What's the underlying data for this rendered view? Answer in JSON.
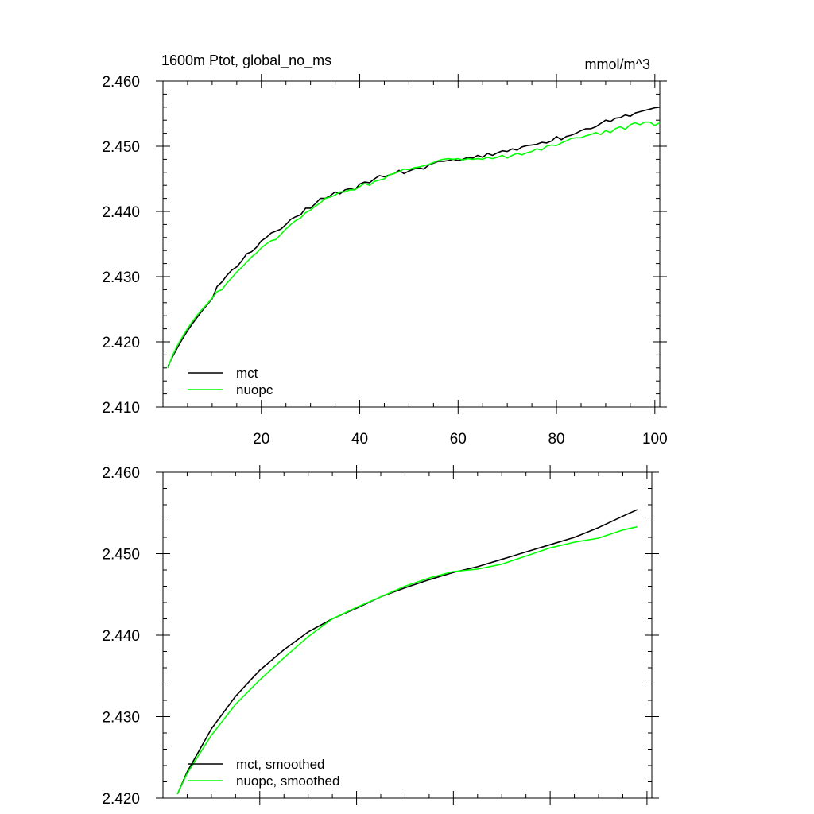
{
  "chart_data": [
    {
      "type": "line",
      "title": "1600m Ptot, global_no_ms",
      "units": "mmol/m^3",
      "xlabel": "",
      "ylabel": "",
      "xlim": [
        0,
        101
      ],
      "ylim": [
        2.41,
        2.46
      ],
      "xticks": [
        20,
        40,
        60,
        80,
        100
      ],
      "xtick_labels": [
        "20",
        "40",
        "60",
        "80",
        "100"
      ],
      "yticks": [
        2.41,
        2.42,
        2.43,
        2.44,
        2.45,
        2.46
      ],
      "ytick_labels": [
        "2.410",
        "2.420",
        "2.430",
        "2.440",
        "2.450",
        "2.460"
      ],
      "grid": false,
      "legend_position": "bottom-left",
      "series": [
        {
          "name": "mct",
          "color": "#000000",
          "x": [
            1,
            2,
            3,
            4,
            5,
            6,
            7,
            8,
            9,
            10,
            11,
            12,
            13,
            14,
            15,
            16,
            17,
            18,
            19,
            20,
            21,
            22,
            23,
            24,
            25,
            26,
            27,
            28,
            29,
            30,
            31,
            32,
            33,
            34,
            35,
            36,
            37,
            38,
            39,
            40,
            41,
            42,
            43,
            44,
            45,
            46,
            47,
            48,
            49,
            50,
            51,
            52,
            53,
            54,
            55,
            56,
            57,
            58,
            59,
            60,
            61,
            62,
            63,
            64,
            65,
            66,
            67,
            68,
            69,
            70,
            71,
            72,
            73,
            74,
            75,
            76,
            77,
            78,
            79,
            80,
            81,
            82,
            83,
            84,
            85,
            86,
            87,
            88,
            89,
            90,
            91,
            92,
            93,
            94,
            95,
            96,
            97,
            98,
            99,
            100,
            101
          ],
          "values": [
            2.4162,
            2.4178,
            2.4192,
            2.4205,
            2.4217,
            2.4228,
            2.4238,
            2.4248,
            2.4257,
            2.4266,
            2.4285,
            2.4292,
            2.4302,
            2.431,
            2.4315,
            2.4324,
            2.4335,
            2.4338,
            2.4345,
            2.4355,
            2.436,
            2.4367,
            2.437,
            2.4373,
            2.438,
            2.4388,
            2.4392,
            2.4395,
            2.4405,
            2.4405,
            2.4412,
            2.442,
            2.442,
            2.4424,
            2.443,
            2.4427,
            2.4433,
            2.4435,
            2.4433,
            2.4442,
            2.4445,
            2.4444,
            2.445,
            2.4455,
            2.4453,
            2.4456,
            2.4458,
            2.4463,
            2.4458,
            2.4462,
            2.4465,
            2.4467,
            2.4465,
            2.4471,
            2.4474,
            2.4477,
            2.4477,
            2.4478,
            2.448,
            2.4478,
            2.448,
            2.4483,
            2.4482,
            2.4486,
            2.4483,
            2.4489,
            2.4486,
            2.449,
            2.4493,
            2.4492,
            2.4496,
            2.4494,
            2.4499,
            2.4501,
            2.4502,
            2.4503,
            2.4506,
            2.4505,
            2.4508,
            2.4515,
            2.451,
            2.4515,
            2.4517,
            2.452,
            2.4524,
            2.4527,
            2.4527,
            2.453,
            2.4535,
            2.454,
            2.4538,
            2.4543,
            2.4544,
            2.4548,
            2.4546,
            2.4551,
            2.4553,
            2.4555,
            2.4557,
            2.4559,
            2.456
          ]
        },
        {
          "name": "nuopc",
          "color": "#00ff00",
          "x": [
            1,
            2,
            3,
            4,
            5,
            6,
            7,
            8,
            9,
            10,
            11,
            12,
            13,
            14,
            15,
            16,
            17,
            18,
            19,
            20,
            21,
            22,
            23,
            24,
            25,
            26,
            27,
            28,
            29,
            30,
            31,
            32,
            33,
            34,
            35,
            36,
            37,
            38,
            39,
            40,
            41,
            42,
            43,
            44,
            45,
            46,
            47,
            48,
            49,
            50,
            51,
            52,
            53,
            54,
            55,
            56,
            57,
            58,
            59,
            60,
            61,
            62,
            63,
            64,
            65,
            66,
            67,
            68,
            69,
            70,
            71,
            72,
            73,
            74,
            75,
            76,
            77,
            78,
            79,
            80,
            81,
            82,
            83,
            84,
            85,
            86,
            87,
            88,
            89,
            90,
            91,
            92,
            93,
            94,
            95,
            96,
            97,
            98,
            99,
            100,
            101
          ],
          "values": [
            2.416,
            2.418,
            2.4195,
            2.4208,
            2.422,
            2.4231,
            2.4241,
            2.425,
            2.4258,
            2.4267,
            2.4277,
            2.428,
            2.429,
            2.4298,
            2.4307,
            2.4314,
            2.4322,
            2.433,
            2.4336,
            2.4344,
            2.435,
            2.4355,
            2.4357,
            2.4365,
            2.4373,
            2.438,
            2.4386,
            2.439,
            2.4398,
            2.4402,
            2.4408,
            2.4413,
            2.442,
            2.4422,
            2.4425,
            2.443,
            2.443,
            2.4433,
            2.4433,
            2.4438,
            2.4443,
            2.444,
            2.4446,
            2.4448,
            2.445,
            2.4456,
            2.4458,
            2.4461,
            2.4465,
            2.4464,
            2.4467,
            2.4468,
            2.447,
            2.4472,
            2.4475,
            2.4478,
            2.448,
            2.4481,
            2.448,
            2.4481,
            2.4479,
            2.4481,
            2.448,
            2.4481,
            2.448,
            2.4483,
            2.4481,
            2.4483,
            2.4486,
            2.4482,
            2.4486,
            2.4489,
            2.4487,
            2.449,
            2.4492,
            2.4496,
            2.4494,
            2.45,
            2.4502,
            2.4501,
            2.4505,
            2.4508,
            2.4512,
            2.4513,
            2.4513,
            2.4516,
            2.4518,
            2.4521,
            2.4518,
            2.4524,
            2.4521,
            2.4527,
            2.453,
            2.4526,
            2.4533,
            2.4536,
            2.4533,
            2.4537,
            2.4537,
            2.4532,
            2.4536
          ]
        }
      ]
    },
    {
      "type": "line",
      "title": "",
      "xlabel": "",
      "ylabel": "",
      "xlim": [
        0,
        101
      ],
      "ylim": [
        2.42,
        2.46
      ],
      "xticks": [
        20,
        40,
        60,
        80,
        100
      ],
      "yticks": [
        2.42,
        2.43,
        2.44,
        2.45,
        2.46
      ],
      "ytick_labels": [
        "2.420",
        "2.430",
        "2.440",
        "2.450",
        "2.460"
      ],
      "grid": false,
      "legend_position": "bottom-left",
      "series": [
        {
          "name": "mct, smoothed",
          "color": "#000000",
          "x": [
            3,
            5,
            10,
            15,
            20,
            25,
            30,
            35,
            40,
            45,
            50,
            55,
            60,
            65,
            70,
            75,
            80,
            85,
            90,
            95,
            98
          ],
          "values": [
            2.4205,
            2.4232,
            2.4285,
            2.4325,
            2.4357,
            2.4382,
            2.4404,
            2.442,
            2.4433,
            2.4447,
            2.4458,
            2.4468,
            2.4477,
            2.4484,
            2.4493,
            2.4502,
            2.4511,
            2.452,
            2.4532,
            2.4546,
            2.4554
          ]
        },
        {
          "name": "nuopc, smoothed",
          "color": "#00ff00",
          "x": [
            3,
            5,
            10,
            15,
            20,
            25,
            30,
            35,
            40,
            45,
            50,
            55,
            60,
            65,
            70,
            75,
            80,
            85,
            90,
            95,
            98
          ],
          "values": [
            2.4205,
            2.423,
            2.4277,
            2.4315,
            2.4345,
            2.4372,
            2.4398,
            2.442,
            2.4434,
            2.4447,
            2.446,
            2.447,
            2.4478,
            2.4481,
            2.4487,
            2.4497,
            2.4507,
            2.4514,
            2.4519,
            2.4529,
            2.4533
          ]
        }
      ]
    }
  ]
}
